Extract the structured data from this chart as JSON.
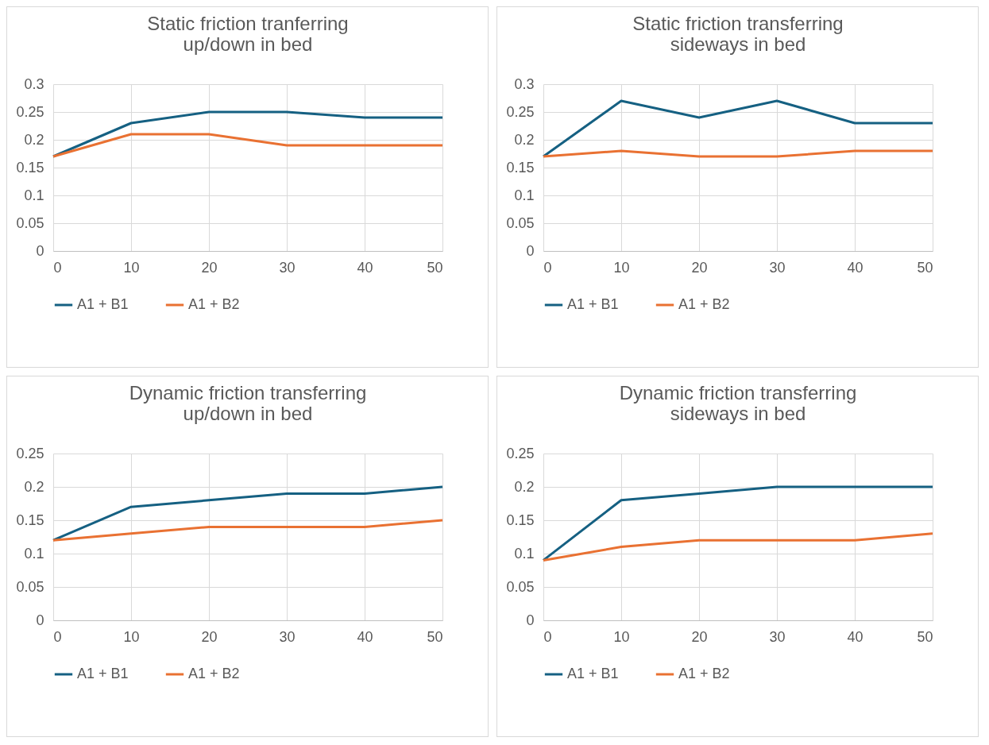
{
  "chart_data": [
    {
      "type": "line",
      "title": "Static friction tranferring up/down in bed",
      "x": [
        0,
        10,
        20,
        30,
        40,
        50
      ],
      "xlim": [
        0,
        50
      ],
      "xticks": [
        0,
        10,
        20,
        30,
        40,
        50
      ],
      "ylim": [
        0,
        0.3
      ],
      "yticks": [
        0,
        0.05,
        0.1,
        0.15,
        0.2,
        0.25,
        0.3
      ],
      "grid": true,
      "legend": "bottom",
      "series": [
        {
          "name": "A1 + B1",
          "color": "#156082",
          "values": [
            0.17,
            0.23,
            0.25,
            0.25,
            0.24,
            0.24
          ]
        },
        {
          "name": "A1 + B2",
          "color": "#e97132",
          "values": [
            0.17,
            0.21,
            0.21,
            0.19,
            0.19,
            0.19
          ]
        }
      ]
    },
    {
      "type": "line",
      "title": "Static friction transferring sideways in bed",
      "x": [
        0,
        10,
        20,
        30,
        40,
        50
      ],
      "xlim": [
        0,
        50
      ],
      "xticks": [
        0,
        10,
        20,
        30,
        40,
        50
      ],
      "ylim": [
        0,
        0.3
      ],
      "yticks": [
        0,
        0.05,
        0.1,
        0.15,
        0.2,
        0.25,
        0.3
      ],
      "grid": true,
      "legend": "bottom",
      "series": [
        {
          "name": "A1 + B1",
          "color": "#156082",
          "values": [
            0.17,
            0.27,
            0.24,
            0.27,
            0.23,
            0.23
          ]
        },
        {
          "name": "A1 + B2",
          "color": "#e97132",
          "values": [
            0.17,
            0.18,
            0.17,
            0.17,
            0.18,
            0.18
          ]
        }
      ]
    },
    {
      "type": "line",
      "title": "Dynamic friction transferring up/down in bed",
      "x": [
        0,
        10,
        20,
        30,
        40,
        50
      ],
      "xlim": [
        0,
        50
      ],
      "xticks": [
        0,
        10,
        20,
        30,
        40,
        50
      ],
      "ylim": [
        0,
        0.25
      ],
      "yticks": [
        0,
        0.05,
        0.1,
        0.15,
        0.2,
        0.25
      ],
      "grid": true,
      "legend": "bottom",
      "series": [
        {
          "name": "A1 + B1",
          "color": "#156082",
          "values": [
            0.12,
            0.17,
            0.18,
            0.19,
            0.19,
            0.2
          ]
        },
        {
          "name": "A1 + B2",
          "color": "#e97132",
          "values": [
            0.12,
            0.13,
            0.14,
            0.14,
            0.14,
            0.15
          ]
        }
      ]
    },
    {
      "type": "line",
      "title": "Dynamic friction transferring sideways in bed",
      "x": [
        0,
        10,
        20,
        30,
        40,
        50
      ],
      "xlim": [
        0,
        50
      ],
      "xticks": [
        0,
        10,
        20,
        30,
        40,
        50
      ],
      "ylim": [
        0,
        0.25
      ],
      "yticks": [
        0,
        0.05,
        0.1,
        0.15,
        0.2,
        0.25
      ],
      "grid": true,
      "legend": "bottom",
      "series": [
        {
          "name": "A1 + B1",
          "color": "#156082",
          "values": [
            0.09,
            0.18,
            0.19,
            0.2,
            0.2,
            0.2
          ]
        },
        {
          "name": "A1 + B2",
          "color": "#e97132",
          "values": [
            0.09,
            0.11,
            0.12,
            0.12,
            0.12,
            0.13
          ]
        }
      ]
    }
  ]
}
